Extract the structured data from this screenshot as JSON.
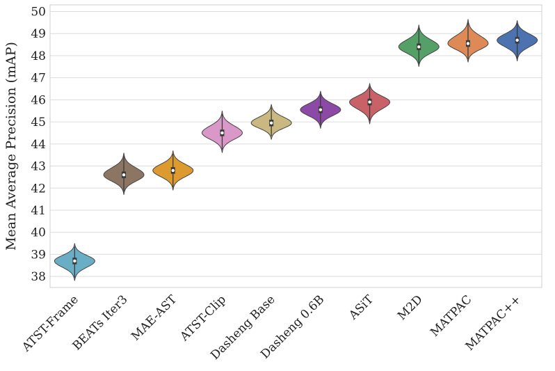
{
  "chart_data": {
    "type": "violin",
    "title": "",
    "xlabel": "",
    "ylabel": "Mean Average Precision (mAP)",
    "ylim": [
      37.5,
      50.3
    ],
    "yticks": [
      "38",
      "39",
      "40",
      "41",
      "42",
      "43",
      "44",
      "45",
      "46",
      "47",
      "48",
      "49",
      "50"
    ],
    "grid": true,
    "categories": [
      "ATST-Frame",
      "BEATs Iter3",
      "MAE-AST",
      "ATST-Clip",
      "Dasheng Base",
      "Dasheng 0.6B",
      "ASiT",
      "M2D",
      "MATPAC",
      "MATPAC++"
    ],
    "series": [
      {
        "name": "ATST-Frame",
        "median": 38.7,
        "min": 37.8,
        "max": 39.5,
        "q1": 38.55,
        "q3": 38.85,
        "color": "#6aaec6"
      },
      {
        "name": "BEATs Iter3",
        "median": 42.6,
        "min": 41.7,
        "max": 43.6,
        "q1": 42.45,
        "q3": 42.75,
        "color": "#8c7663"
      },
      {
        "name": "MAE-AST",
        "median": 42.8,
        "min": 41.9,
        "max": 43.7,
        "q1": 42.65,
        "q3": 42.95,
        "color": "#dd9a2f"
      },
      {
        "name": "ATST-Clip",
        "median": 44.5,
        "min": 43.6,
        "max": 45.5,
        "q1": 44.35,
        "q3": 44.65,
        "color": "#d998c8"
      },
      {
        "name": "Dasheng Base",
        "median": 44.95,
        "min": 44.2,
        "max": 45.8,
        "q1": 44.8,
        "q3": 45.1,
        "color": "#c9b880"
      },
      {
        "name": "Dasheng 0.6B",
        "median": 45.55,
        "min": 44.7,
        "max": 46.4,
        "q1": 45.4,
        "q3": 45.7,
        "color": "#8c4aa6"
      },
      {
        "name": "ASiT",
        "median": 45.9,
        "min": 44.9,
        "max": 46.75,
        "q1": 45.75,
        "q3": 46.05,
        "color": "#c96268"
      },
      {
        "name": "M2D",
        "median": 48.4,
        "min": 47.5,
        "max": 49.4,
        "q1": 48.25,
        "q3": 48.55,
        "color": "#55a067"
      },
      {
        "name": "MATPAC",
        "median": 48.55,
        "min": 47.7,
        "max": 49.65,
        "q1": 48.4,
        "q3": 48.7,
        "color": "#dd8a56"
      },
      {
        "name": "MATPAC++",
        "median": 48.7,
        "min": 47.75,
        "max": 49.6,
        "q1": 48.55,
        "q3": 48.85,
        "color": "#4c72b0"
      }
    ]
  }
}
